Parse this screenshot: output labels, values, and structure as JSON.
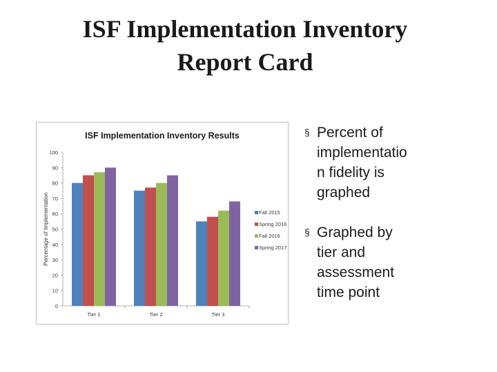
{
  "slide": {
    "title_line1": "ISF Implementation Inventory",
    "title_line2": "Report Card"
  },
  "bullets": [
    {
      "marker": "§",
      "text": "Percent of\nimplementatio\nn fidelity is\ngraphed"
    },
    {
      "marker": "§",
      "text": "Graphed by\ntier and\nassessment\ntime point"
    }
  ],
  "chart_data": {
    "type": "bar",
    "title": "ISF Implementation Inventory Results",
    "ylabel": "Percentage of Implementation",
    "xlabel": "",
    "categories": [
      "Tier 1",
      "Tier 2",
      "Tier 3"
    ],
    "ylim": [
      0,
      100
    ],
    "yticks": [
      0,
      10,
      20,
      30,
      40,
      50,
      60,
      70,
      80,
      90,
      100
    ],
    "grid": false,
    "legend": "right",
    "series": [
      {
        "name": "Fall 2015",
        "color": "#4f81bd",
        "values": [
          80,
          75,
          55
        ]
      },
      {
        "name": "Spring 2016",
        "color": "#c0504d",
        "values": [
          85,
          77,
          58
        ]
      },
      {
        "name": "Fall 2016",
        "color": "#9bbb59",
        "values": [
          87,
          80,
          62
        ]
      },
      {
        "name": "Spring 2017",
        "color": "#8064a2",
        "values": [
          90,
          85,
          68
        ]
      }
    ]
  }
}
